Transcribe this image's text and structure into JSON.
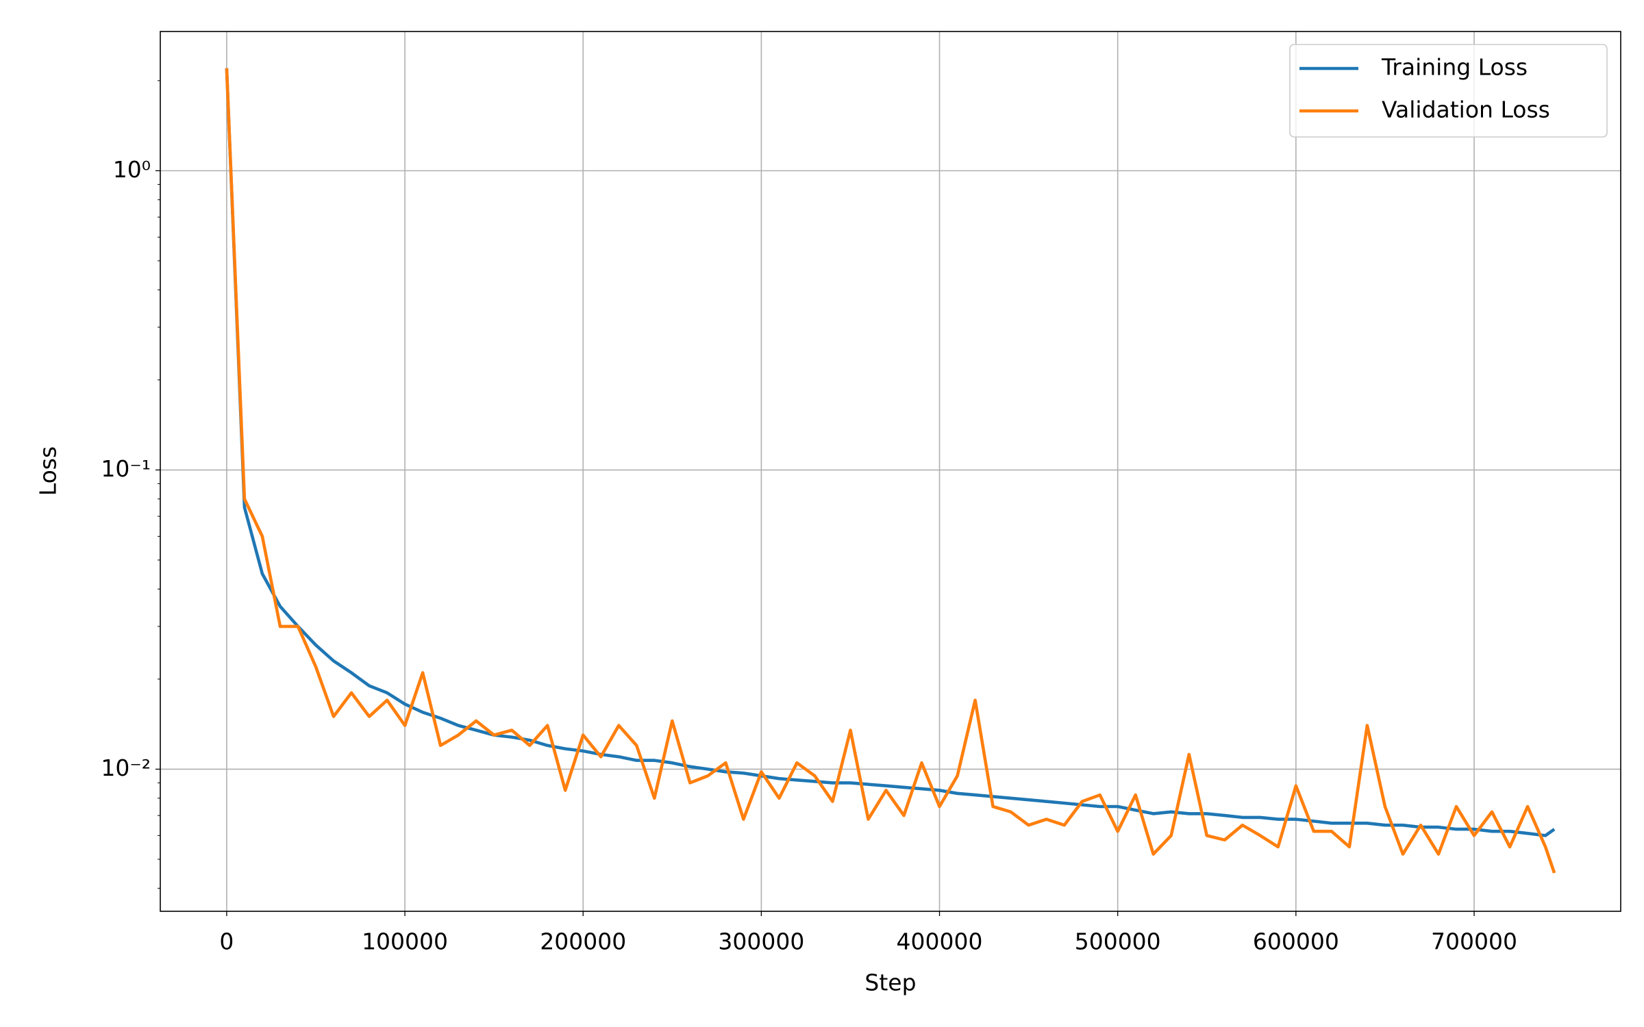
{
  "chart_data": {
    "type": "line",
    "xlabel": "Step",
    "ylabel": "Loss",
    "x": [
      0,
      10000,
      20000,
      30000,
      40000,
      50000,
      60000,
      70000,
      80000,
      90000,
      100000,
      110000,
      120000,
      130000,
      140000,
      150000,
      160000,
      170000,
      180000,
      190000,
      200000,
      210000,
      220000,
      230000,
      240000,
      250000,
      260000,
      270000,
      280000,
      290000,
      300000,
      310000,
      320000,
      330000,
      340000,
      350000,
      360000,
      370000,
      380000,
      390000,
      400000,
      410000,
      420000,
      430000,
      440000,
      450000,
      460000,
      470000,
      480000,
      490000,
      500000,
      510000,
      520000,
      530000,
      540000,
      550000,
      560000,
      570000,
      580000,
      590000,
      600000,
      610000,
      620000,
      630000,
      640000,
      650000,
      660000,
      670000,
      680000,
      690000,
      700000,
      710000,
      720000,
      730000,
      740000,
      745000
    ],
    "series": [
      {
        "name": "Training Loss",
        "color": "#1f77b4",
        "values": [
          2.2,
          0.075,
          0.045,
          0.035,
          0.03,
          0.026,
          0.023,
          0.021,
          0.019,
          0.018,
          0.0165,
          0.0155,
          0.0148,
          0.014,
          0.0135,
          0.013,
          0.0128,
          0.0125,
          0.012,
          0.0117,
          0.0115,
          0.0112,
          0.011,
          0.0107,
          0.0107,
          0.0105,
          0.0102,
          0.01,
          0.0098,
          0.0097,
          0.0095,
          0.0093,
          0.0092,
          0.0091,
          0.009,
          0.009,
          0.0089,
          0.0088,
          0.0087,
          0.0086,
          0.0085,
          0.0083,
          0.0082,
          0.0081,
          0.008,
          0.0079,
          0.0078,
          0.0077,
          0.0076,
          0.0075,
          0.0075,
          0.0073,
          0.0071,
          0.0072,
          0.0071,
          0.0071,
          0.007,
          0.0069,
          0.0069,
          0.0068,
          0.0068,
          0.0067,
          0.0066,
          0.0066,
          0.0066,
          0.0065,
          0.0065,
          0.0064,
          0.0064,
          0.0063,
          0.0063,
          0.0062,
          0.0062,
          0.0061,
          0.006,
          0.0063
        ]
      },
      {
        "name": "Validation Loss",
        "color": "#ff7f0e",
        "values": [
          2.2,
          0.08,
          0.06,
          0.03,
          0.03,
          0.022,
          0.015,
          0.018,
          0.015,
          0.017,
          0.014,
          0.021,
          0.012,
          0.013,
          0.0145,
          0.013,
          0.0135,
          0.012,
          0.014,
          0.0085,
          0.013,
          0.011,
          0.014,
          0.012,
          0.008,
          0.0145,
          0.009,
          0.0095,
          0.0105,
          0.0068,
          0.0098,
          0.008,
          0.0105,
          0.0095,
          0.0078,
          0.0135,
          0.0068,
          0.0085,
          0.007,
          0.0105,
          0.0075,
          0.0095,
          0.017,
          0.0075,
          0.0072,
          0.0065,
          0.0068,
          0.0065,
          0.0078,
          0.0082,
          0.0062,
          0.0082,
          0.0052,
          0.006,
          0.0112,
          0.006,
          0.0058,
          0.0065,
          0.006,
          0.0055,
          0.0088,
          0.0062,
          0.0062,
          0.0055,
          0.014,
          0.0075,
          0.0052,
          0.0065,
          0.0052,
          0.0075,
          0.006,
          0.0072,
          0.0055,
          0.0075,
          0.0055,
          0.0045
        ]
      }
    ],
    "xlim": [
      -37250,
      782250
    ],
    "ylim": [
      0.00335,
      2.92
    ],
    "log_y": true,
    "xticks": [
      0,
      100000,
      200000,
      300000,
      400000,
      500000,
      600000,
      700000
    ],
    "yticks": [
      {
        "value": 0.01,
        "label": "10⁻²"
      },
      {
        "value": 0.1,
        "label": "10⁻¹"
      },
      {
        "value": 1,
        "label": "10⁰"
      }
    ],
    "yminorticks": [
      0.004,
      0.005,
      0.006,
      0.007,
      0.008,
      0.009,
      0.02,
      0.03,
      0.04,
      0.05,
      0.06,
      0.07,
      0.08,
      0.09,
      0.2,
      0.3,
      0.4,
      0.5,
      0.6,
      0.7,
      0.8,
      0.9,
      2
    ],
    "grid": true,
    "legend": "upper right"
  }
}
